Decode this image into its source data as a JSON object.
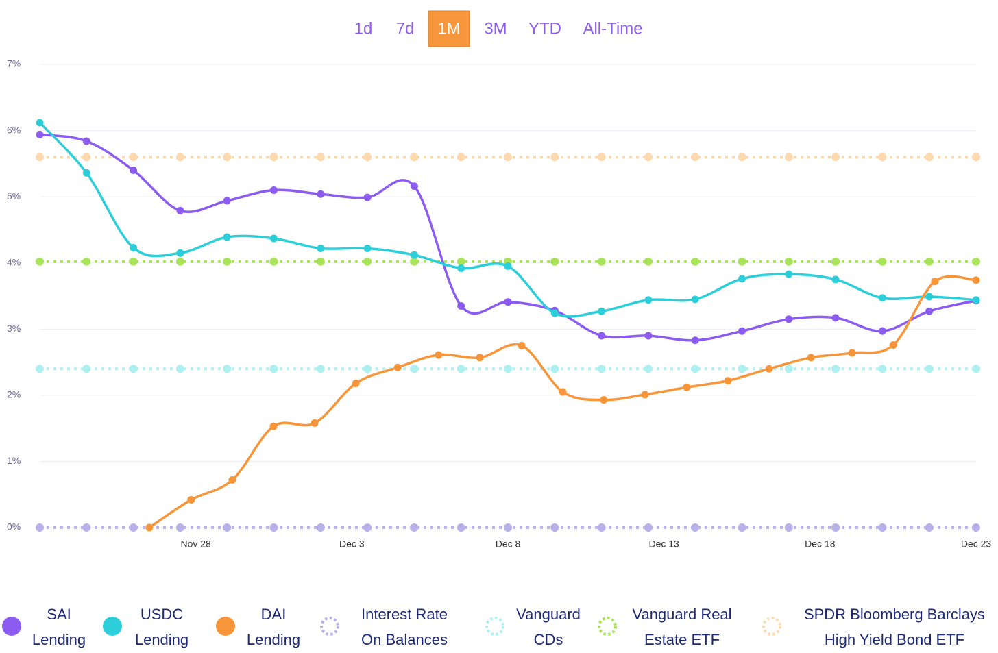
{
  "range_buttons": [
    "1d",
    "7d",
    "1M",
    "3M",
    "YTD",
    "All-Time"
  ],
  "active_range": "1M",
  "chart_data": {
    "type": "line",
    "legend": "bottom",
    "grid": true,
    "xlim": [
      0,
      30
    ],
    "xticks": [
      {
        "value": 5,
        "label": "Nov 28"
      },
      {
        "value": 10,
        "label": "Dec 3"
      },
      {
        "value": 15,
        "label": "Dec 8"
      },
      {
        "value": 20,
        "label": "Dec 13"
      },
      {
        "value": 25,
        "label": "Dec 18"
      },
      {
        "value": 30,
        "label": "Dec 23"
      }
    ],
    "ylim": [
      0,
      7
    ],
    "yticks": [
      {
        "value": 0,
        "label": "0%"
      },
      {
        "value": 1,
        "label": "1%"
      },
      {
        "value": 2,
        "label": "2%"
      },
      {
        "value": 3,
        "label": "3%"
      },
      {
        "value": 4,
        "label": "4%"
      },
      {
        "value": 5,
        "label": "5%"
      },
      {
        "value": 6,
        "label": "6%"
      },
      {
        "value": 7,
        "label": "7%"
      }
    ],
    "x": [
      0,
      1.5,
      3,
      4.5,
      6,
      7.5,
      9,
      10.5,
      12,
      13.5,
      15,
      16.5,
      18,
      19.5,
      21,
      22.5,
      24,
      25.5,
      27,
      28.5,
      30
    ],
    "series": [
      {
        "name": "SAI Lending",
        "color": "#8c5cf0",
        "style": "solid",
        "values": [
          5.94,
          5.84,
          5.4,
          4.79,
          4.94,
          5.1,
          5.04,
          4.99,
          5.16,
          3.35,
          3.41,
          3.28,
          2.9,
          2.9,
          2.83,
          2.97,
          3.15,
          3.17,
          2.97,
          3.27,
          3.43
        ]
      },
      {
        "name": "USDC Lending",
        "color": "#2ccfd9",
        "style": "solid",
        "values": [
          6.12,
          5.36,
          4.23,
          4.15,
          4.39,
          4.37,
          4.22,
          4.22,
          4.12,
          3.92,
          3.95,
          3.24,
          3.27,
          3.44,
          3.45,
          3.76,
          3.83,
          3.75,
          3.47,
          3.49,
          3.44
        ]
      },
      {
        "name": "DAI Lending",
        "color": "#f7953a",
        "style": "solid",
        "x": [
          3.51,
          4.85,
          6.17,
          7.49,
          8.81,
          10.13,
          11.47,
          12.78,
          14.1,
          15.44,
          16.76,
          18.07,
          19.39,
          20.73,
          22.05,
          23.37,
          24.71,
          26.03,
          27.35,
          28.68,
          30
        ],
        "values": [
          0,
          0.42,
          0.72,
          1.53,
          1.58,
          2.18,
          2.42,
          2.61,
          2.57,
          2.75,
          2.05,
          1.93,
          2.01,
          2.12,
          2.22,
          2.4,
          2.57,
          2.64,
          2.76,
          3.72,
          3.74
        ]
      },
      {
        "name": "Interest Rate On Balances",
        "color": "#b8b0e8",
        "style": "dotted",
        "values": [
          0,
          0,
          0,
          0,
          0,
          0,
          0,
          0,
          0,
          0,
          0,
          0,
          0,
          0,
          0,
          0,
          0,
          0,
          0,
          0,
          0
        ]
      },
      {
        "name": "Vanguard CDs",
        "color": "#aef0f0",
        "style": "dotted",
        "values": [
          2.4,
          2.4,
          2.4,
          2.4,
          2.4,
          2.4,
          2.4,
          2.4,
          2.4,
          2.4,
          2.4,
          2.4,
          2.4,
          2.4,
          2.4,
          2.4,
          2.4,
          2.4,
          2.4,
          2.4,
          2.4
        ]
      },
      {
        "name": "Vanguard Real Estate ETF",
        "color": "#a8e35a",
        "style": "dotted",
        "values": [
          4.02,
          4.02,
          4.02,
          4.02,
          4.02,
          4.02,
          4.02,
          4.02,
          4.02,
          4.02,
          4.02,
          4.02,
          4.02,
          4.02,
          4.02,
          4.02,
          4.02,
          4.02,
          4.02,
          4.02,
          4.02
        ]
      },
      {
        "name": "SPDR Bloomberg Barclays High Yield Bond ETF",
        "color": "#fdd9b0",
        "style": "dotted",
        "values": [
          5.6,
          5.6,
          5.6,
          5.6,
          5.6,
          5.6,
          5.6,
          5.6,
          5.6,
          5.6,
          5.6,
          5.6,
          5.6,
          5.6,
          5.6,
          5.6,
          5.6,
          5.6,
          5.6,
          5.6,
          5.6
        ]
      }
    ]
  }
}
